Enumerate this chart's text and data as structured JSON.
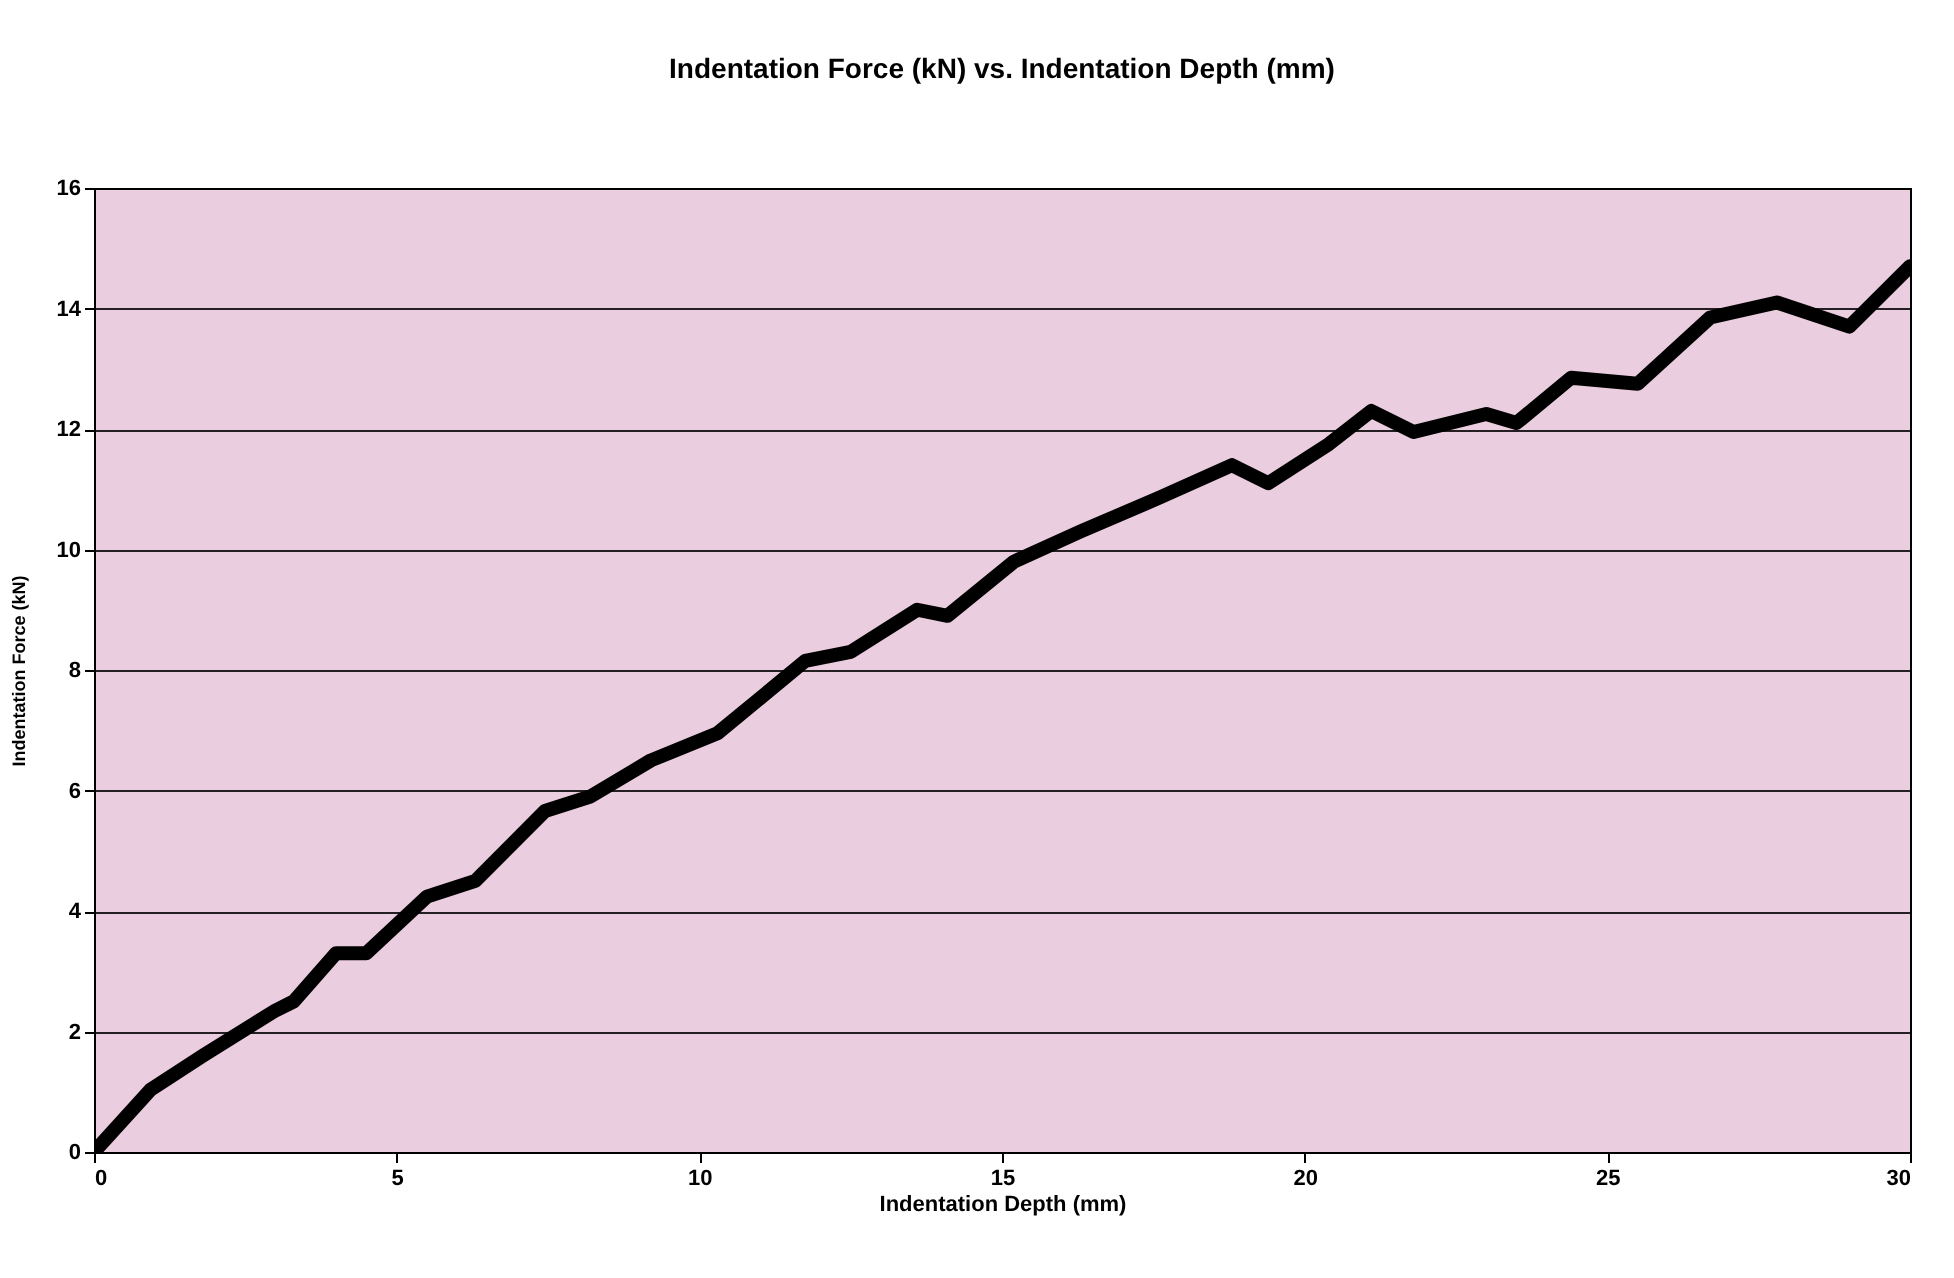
{
  "chart_data": {
    "type": "line",
    "title": "Indentation Force (kN) vs. Indentation Depth (mm)",
    "xlabel": "Indentation Depth (mm)",
    "ylabel": "Indentation Force (kN)",
    "x": [
      0,
      0.93,
      1.8,
      3.0,
      3.3,
      4.0,
      4.5,
      5.5,
      6.3,
      7.45,
      8.2,
      9.2,
      10.3,
      11.75,
      12.5,
      13.6,
      14.1,
      15.2,
      16.3,
      17.6,
      18.8,
      19.4,
      20.4,
      21.1,
      21.8,
      23.0,
      23.5,
      24.4,
      25.5,
      26.7,
      27.8,
      29.0,
      30.0
    ],
    "series": [
      {
        "color": "#000000",
        "values": [
          0,
          1.03,
          1.6,
          2.35,
          2.5,
          3.3,
          3.3,
          4.24,
          4.5,
          5.66,
          5.9,
          6.5,
          6.95,
          8.15,
          8.3,
          9.0,
          8.9,
          9.8,
          10.3,
          10.86,
          11.4,
          11.1,
          11.75,
          12.3,
          11.95,
          12.25,
          12.1,
          12.85,
          12.75,
          13.85,
          14.1,
          13.7,
          14.7
        ]
      }
    ],
    "xlim": [
      0,
      30
    ],
    "xticks": [
      0,
      5,
      10,
      15,
      20,
      25,
      30
    ],
    "ylim": [
      0,
      16
    ],
    "yticks": [
      0,
      2,
      4,
      6,
      8,
      10,
      12,
      14,
      16
    ],
    "grid": "y",
    "line_style": "solid"
  }
}
